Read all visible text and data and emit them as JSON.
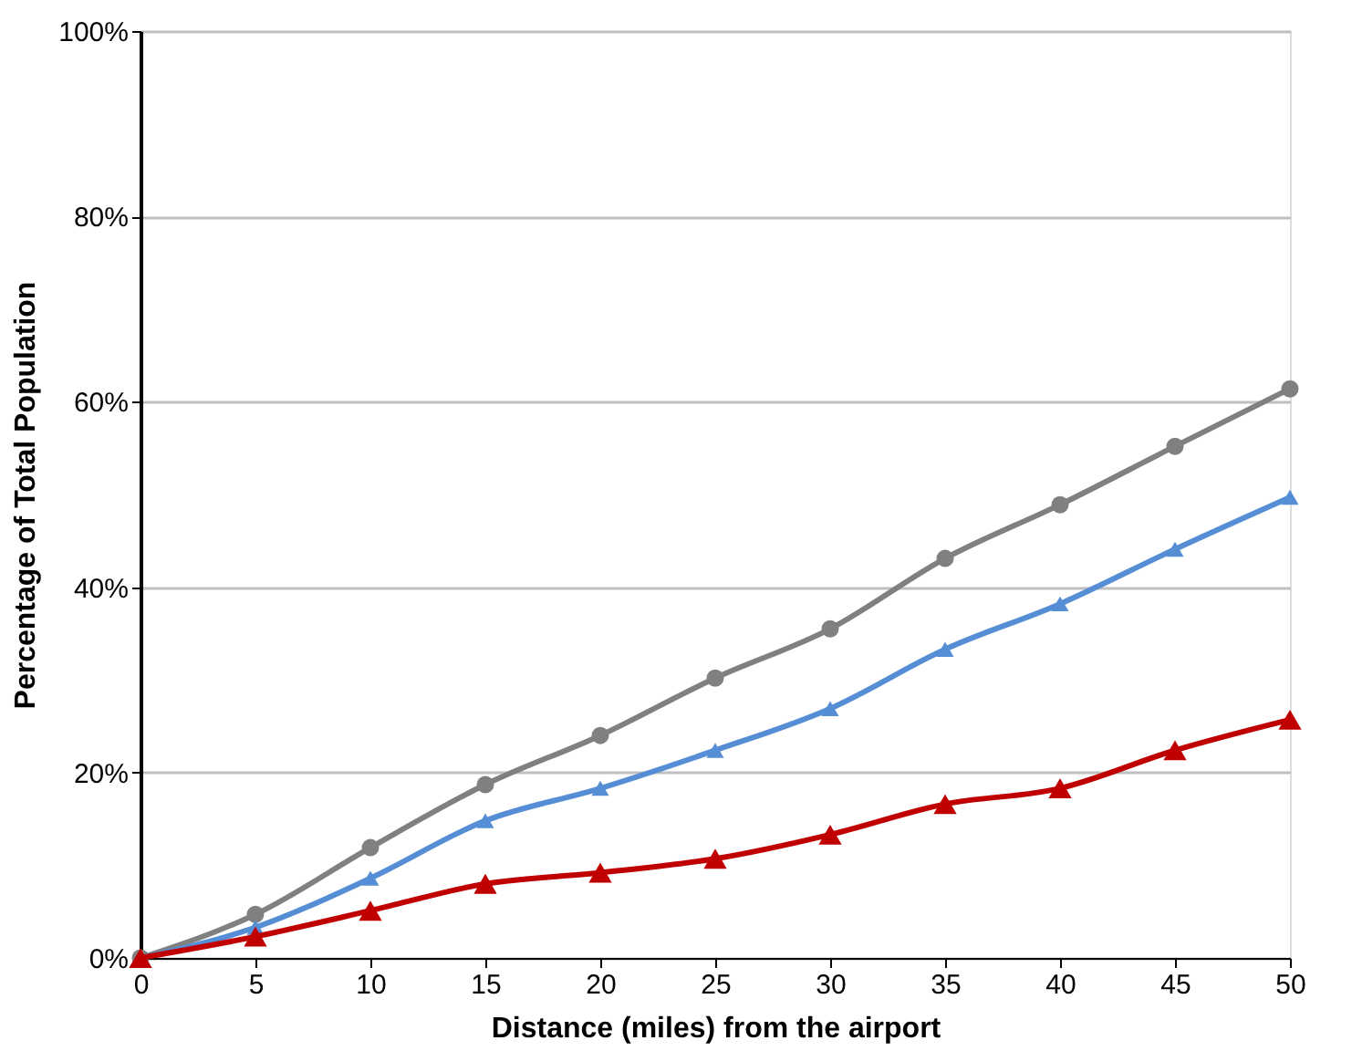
{
  "chart_data": {
    "type": "line",
    "xlabel": "Distance (miles) from the airport",
    "ylabel": "Percentage of Total Population",
    "x": [
      0,
      5,
      10,
      15,
      20,
      25,
      30,
      35,
      40,
      45,
      50
    ],
    "xlim": [
      0,
      50
    ],
    "xticks": [
      0,
      5,
      10,
      15,
      20,
      25,
      30,
      35,
      40,
      45,
      50
    ],
    "ylim": [
      0,
      100
    ],
    "yticks": [
      {
        "value": 0,
        "label": "0%"
      },
      {
        "value": 20,
        "label": "20%"
      },
      {
        "value": 40,
        "label": "40%"
      },
      {
        "value": 60,
        "label": "60%"
      },
      {
        "value": 80,
        "label": "80%"
      },
      {
        "value": 100,
        "label": "100%"
      }
    ],
    "grid": "y",
    "line_style": "solid",
    "series": [
      {
        "color": "#808080",
        "marker": "circle",
        "values": [
          0,
          4.7,
          11.9,
          18.7,
          24.0,
          30.2,
          35.5,
          43.1,
          48.9,
          55.2,
          61.4
        ]
      },
      {
        "color": "#558ed5",
        "marker": "triangle",
        "values": [
          0,
          3.3,
          8.6,
          14.8,
          18.3,
          22.4,
          26.9,
          33.3,
          38.2,
          44.1,
          49.7
        ]
      },
      {
        "color": "#c00000",
        "marker": "triangle",
        "values": [
          0,
          2.3,
          5.1,
          8.0,
          9.2,
          10.7,
          13.3,
          16.6,
          18.3,
          22.4,
          25.7
        ]
      }
    ]
  }
}
